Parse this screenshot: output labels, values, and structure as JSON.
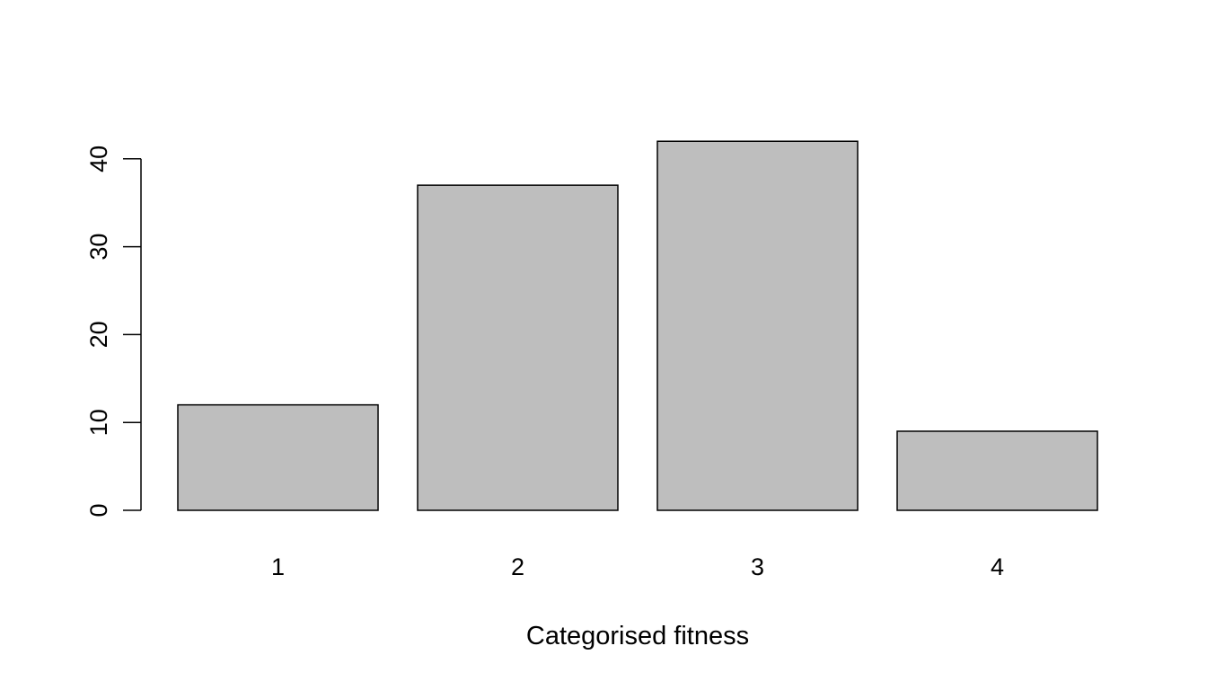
{
  "chart_data": {
    "type": "bar",
    "title": "",
    "xlabel": "Categorised fitness",
    "ylabel": "",
    "categories": [
      "1",
      "2",
      "3",
      "4"
    ],
    "values": [
      12,
      37,
      42,
      9
    ],
    "ylim": [
      0,
      42
    ],
    "yticks": [
      0,
      10,
      20,
      30,
      40
    ],
    "grid": false,
    "legend": "none",
    "colors": {
      "bar_fill": "#bebebe",
      "bar_stroke": "#000000",
      "axis": "#000000",
      "background": "#ffffff"
    }
  }
}
